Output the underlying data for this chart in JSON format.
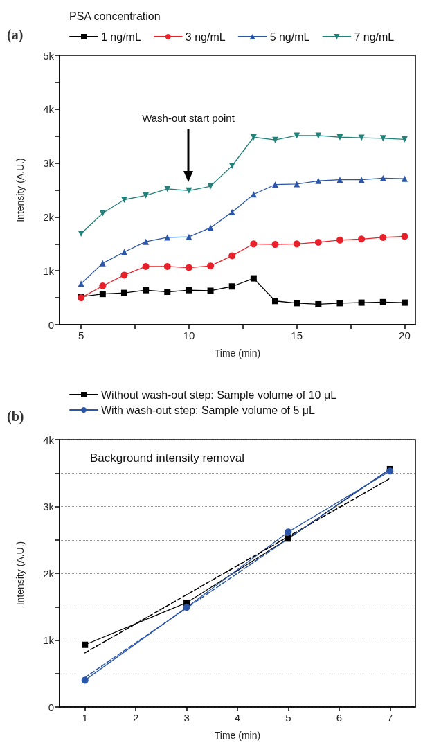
{
  "chart_data": [
    {
      "type": "line",
      "xlabel": "Time (min)",
      "ylabel": "Intensity (A.U.)",
      "legend_title": "PSA concentration",
      "legend": "top",
      "grid": false,
      "annotations": [
        "(a)",
        "Wash-out start point"
      ],
      "xlim": [
        4,
        20.5
      ],
      "xticks": [
        5,
        {
          "value": 7.5,
          "label": null
        },
        10,
        {
          "value": 12.5,
          "label": null
        },
        15,
        {
          "value": 17.5,
          "label": null
        },
        20
      ],
      "ylim": [
        0,
        5000
      ],
      "yticks": [
        0,
        {
          "value": 500,
          "label": null
        },
        {
          "value": 1000,
          "label": "1k"
        },
        {
          "value": 1500,
          "label": null
        },
        {
          "value": 2000,
          "label": "2k"
        },
        {
          "value": 2500,
          "label": null
        },
        {
          "value": 3000,
          "label": "3k"
        },
        {
          "value": 3500,
          "label": null
        },
        {
          "value": 4000,
          "label": "4k"
        },
        {
          "value": 4500,
          "label": null
        },
        {
          "value": 5000,
          "label": "5k"
        }
      ],
      "x": [
        5,
        6,
        7,
        8,
        9,
        10,
        11,
        12,
        13,
        14,
        15,
        16,
        17,
        18,
        19,
        20
      ],
      "series": [
        {
          "name": "1 ng/mL",
          "color": "#000000",
          "marker": "square",
          "values": [
            520,
            570,
            590,
            640,
            610,
            640,
            630,
            710,
            860,
            440,
            400,
            380,
            400,
            410,
            420,
            410
          ]
        },
        {
          "name": "3 ng/mL",
          "color": "#e8202a",
          "marker": "circle",
          "values": [
            500,
            720,
            920,
            1080,
            1080,
            1060,
            1090,
            1280,
            1500,
            1490,
            1500,
            1530,
            1570,
            1590,
            1620,
            1640
          ]
        },
        {
          "name": "5 ng/mL",
          "color": "#2a55a8",
          "marker": "triangle",
          "values": [
            760,
            1140,
            1350,
            1540,
            1620,
            1630,
            1800,
            2090,
            2420,
            2600,
            2610,
            2670,
            2690,
            2690,
            2720,
            2710
          ]
        },
        {
          "name": "7 ng/mL",
          "color": "#22827a",
          "marker": "triangle-down",
          "values": [
            1690,
            2070,
            2320,
            2400,
            2520,
            2490,
            2570,
            2950,
            3480,
            3430,
            3510,
            3510,
            3480,
            3470,
            3460,
            3440
          ]
        }
      ]
    },
    {
      "type": "line",
      "xlabel": "Time (min)",
      "ylabel": "Intensity (A.U.)",
      "legend": "top left",
      "grid": "y",
      "annotations": [
        "(b)",
        "Background intensity removal"
      ],
      "xlim": [
        0.5,
        7.5
      ],
      "xticks": [
        1,
        2,
        3,
        4,
        5,
        6,
        7
      ],
      "ylim": [
        0,
        4000
      ],
      "yticks": [
        0,
        {
          "value": 500,
          "label": null
        },
        {
          "value": 1000,
          "label": "1k"
        },
        {
          "value": 1500,
          "label": null
        },
        {
          "value": 2000,
          "label": "2k"
        },
        {
          "value": 2500,
          "label": null
        },
        {
          "value": 3000,
          "label": "3k"
        },
        {
          "value": 3500,
          "label": null
        },
        {
          "value": 4000,
          "label": "4k"
        }
      ],
      "x": [
        1,
        3,
        5,
        7
      ],
      "series": [
        {
          "name": "Without wash-out step: Sample volume of 10 μL",
          "color": "#000000",
          "marker": "square",
          "values": [
            930,
            1560,
            2520,
            3560
          ]
        },
        {
          "name": "With wash-out step: Sample volume of 5 μL",
          "color": "#2a55a8",
          "marker": "circle",
          "values": [
            400,
            1490,
            2620,
            3530
          ]
        },
        {
          "color": "#000000",
          "marker": "none",
          "line_style": "dashed",
          "values": [
            810,
            1680,
            2550,
            3420
          ]
        },
        {
          "color": "#2a55a8",
          "marker": "none",
          "line_style": "dashed",
          "values": [
            440,
            1480,
            2520,
            3560
          ]
        }
      ]
    }
  ]
}
